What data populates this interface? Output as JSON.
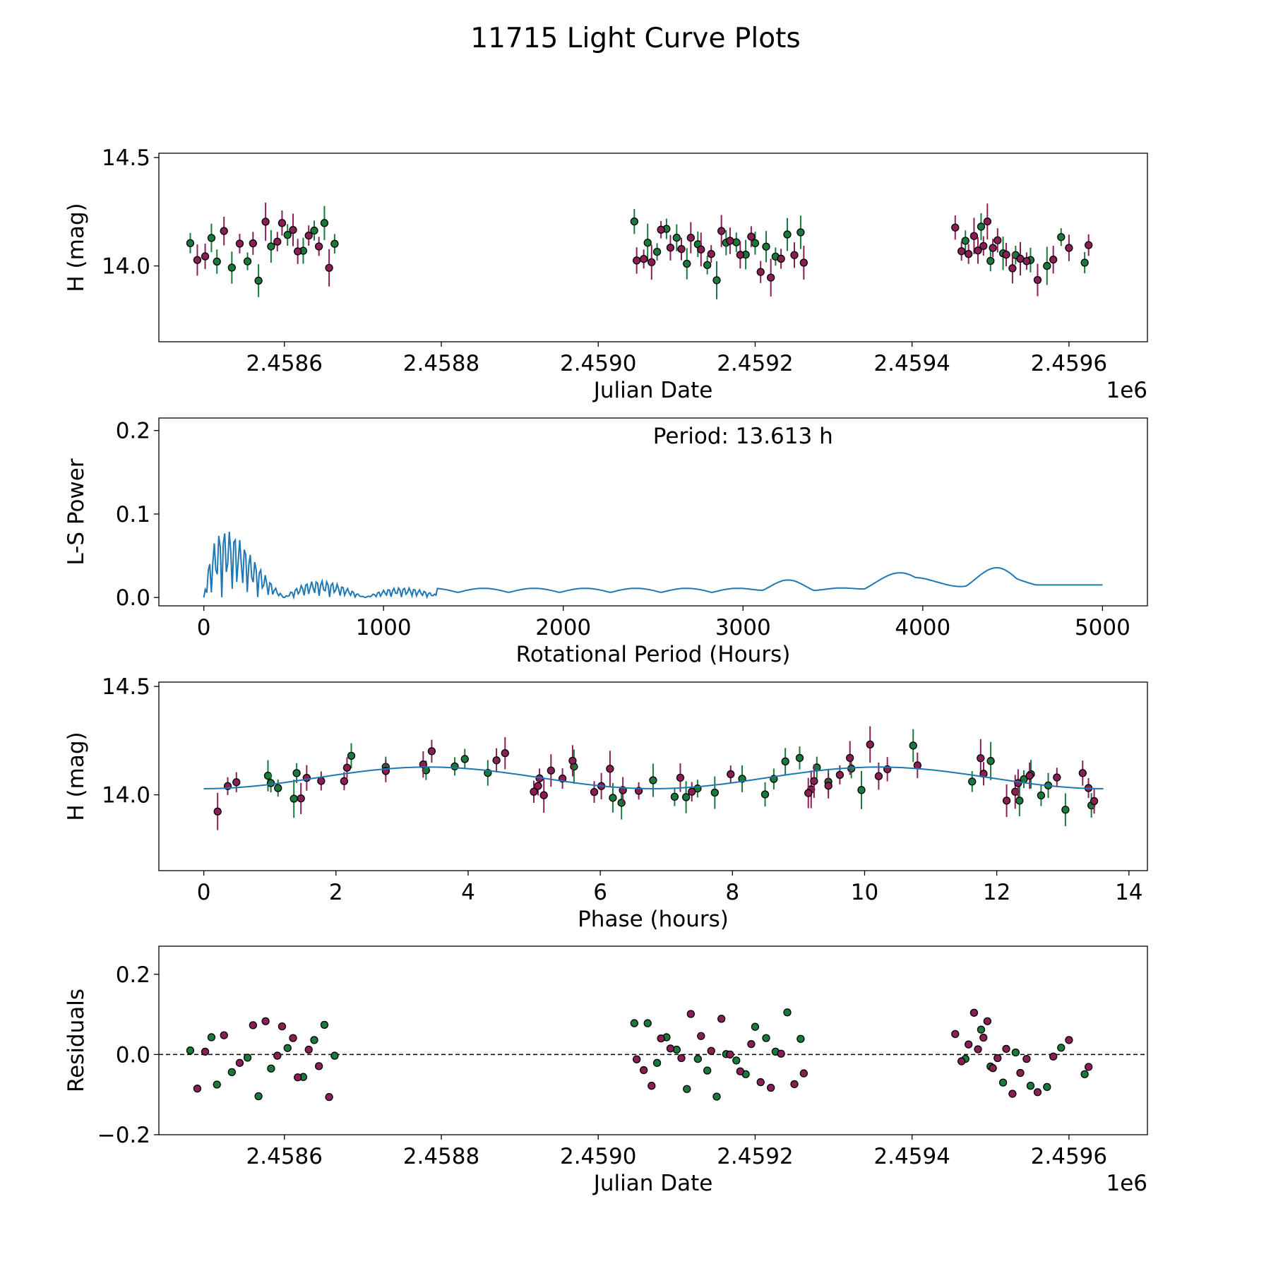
{
  "title": "11715 Light Curve Plots",
  "colors": {
    "g_band": "#1a7a3c",
    "o_band": "#8a1f55",
    "fit": "#1f77b4",
    "ref_line": "#000000",
    "marker_edge": "#000000"
  },
  "chart_data": [
    {
      "type": "scatter",
      "name": "light-curve",
      "xlabel": "Julian Date",
      "ylabel": "H (mag)",
      "xlim": [
        2458440,
        2459700
      ],
      "ylim": [
        13.65,
        14.52
      ],
      "y_inverted": false,
      "x_offset_label": "1e6",
      "xticks": [
        2458600,
        2458800,
        2459000,
        2459200,
        2459400,
        2459600
      ],
      "xtick_labels": [
        "2.4586",
        "2.4588",
        "2.4590",
        "2.4592",
        "2.4594",
        "2.4596"
      ],
      "yticks": [
        14.0,
        14.5
      ],
      "ytick_labels": [
        "14.0",
        "14.5"
      ],
      "series": [
        {
          "name": "g",
          "color": "#1a7a3c",
          "x": [],
          "y": [],
          "err": []
        },
        {
          "name": "o",
          "color": "#8a1f55",
          "x": [],
          "y": [],
          "err": []
        }
      ]
    },
    {
      "type": "line",
      "name": "periodogram",
      "xlabel": "Rotational Period (Hours)",
      "ylabel": "L-S Power",
      "xlim": [
        -250,
        5250
      ],
      "ylim": [
        -0.01,
        0.215
      ],
      "xticks": [
        0,
        1000,
        2000,
        3000,
        4000,
        5000
      ],
      "xtick_labels": [
        "0",
        "1000",
        "2000",
        "3000",
        "4000",
        "5000"
      ],
      "yticks": [
        0.0,
        0.1,
        0.2
      ],
      "ytick_labels": [
        "0.0",
        "0.1",
        "0.2"
      ],
      "annotation": "Period: 13.613 h",
      "series": [
        {
          "name": "power",
          "color": "#1f77b4",
          "x": [],
          "y": []
        }
      ]
    },
    {
      "type": "scatter",
      "name": "phase-folded",
      "xlabel": "Phase (hours)",
      "ylabel": "H (mag)",
      "xlim": [
        -0.68,
        14.28
      ],
      "ylim": [
        13.65,
        14.52
      ],
      "y_inverted": false,
      "period_hours": 13.613,
      "xticks": [
        0,
        2,
        4,
        6,
        8,
        10,
        12,
        14
      ],
      "xtick_labels": [
        "0",
        "2",
        "4",
        "6",
        "8",
        "10",
        "12",
        "14"
      ],
      "yticks": [
        14.0,
        14.5
      ],
      "ytick_labels": [
        "14.0",
        "14.5"
      ],
      "fit": {
        "name": "model",
        "color": "#1f77b4",
        "x": [],
        "y": []
      },
      "series": [
        {
          "name": "g",
          "color": "#1a7a3c",
          "x": [],
          "y": [],
          "err": []
        },
        {
          "name": "o",
          "color": "#8a1f55",
          "x": [],
          "y": [],
          "err": []
        }
      ]
    },
    {
      "type": "scatter",
      "name": "residuals",
      "xlabel": "Julian Date",
      "ylabel": "Residuals",
      "xlim": [
        2458440,
        2459700
      ],
      "ylim": [
        -0.2,
        0.27
      ],
      "x_offset_label": "1e6",
      "xticks": [
        2458600,
        2458800,
        2459000,
        2459200,
        2459400,
        2459600
      ],
      "xtick_labels": [
        "2.4586",
        "2.4588",
        "2.4590",
        "2.4592",
        "2.4594",
        "2.4596"
      ],
      "yticks": [
        -0.2,
        0.0,
        0.2
      ],
      "ytick_labels": [
        "−0.2",
        "0.0",
        "0.2"
      ],
      "reference_line": 0.0,
      "series": [
        {
          "name": "g",
          "color": "#1a7a3c",
          "x": [],
          "y": []
        },
        {
          "name": "o",
          "color": "#8a1f55",
          "x": [],
          "y": []
        }
      ]
    }
  ]
}
